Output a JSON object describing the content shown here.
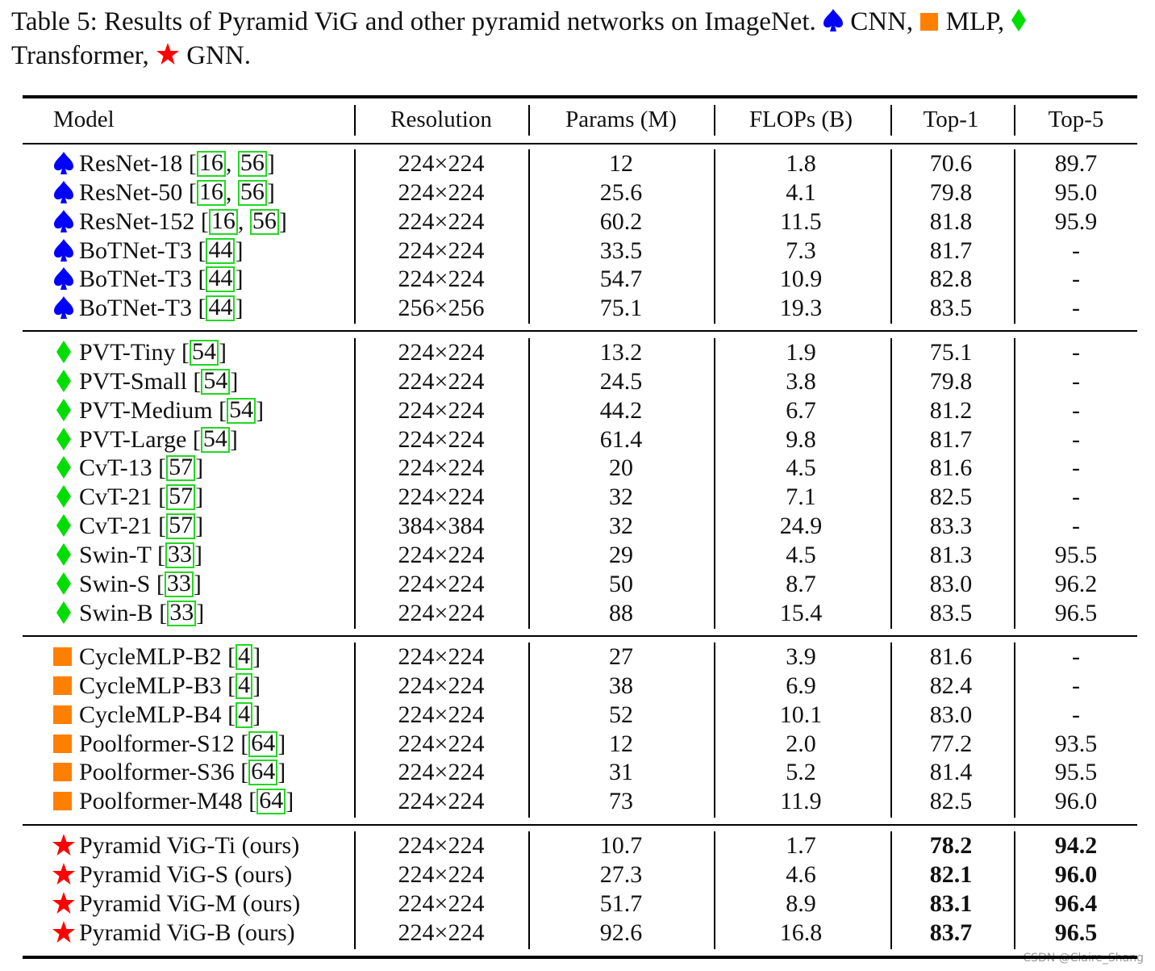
{
  "caption": {
    "part1": "Table 5: Results of Pyramid ViG and other pyramid networks on ImageNet.",
    "cnn": "CNN,",
    "mlp": "MLP,",
    "transformer": "Transformer,",
    "gnn": "GNN."
  },
  "colors": {
    "cnn": "#0000ff",
    "transformer": "#00dd00",
    "mlp": "#ff8000",
    "gnn": "#ff0000",
    "ref_box": "#22d822"
  },
  "icons": {
    "cnn": "spade-icon",
    "transformer": "diamond-icon",
    "mlp": "square-icon",
    "gnn": "star-icon"
  },
  "headers": [
    "Model",
    "Resolution",
    "Params (M)",
    "FLOPs (B)",
    "Top-1",
    "Top-5"
  ],
  "groups": [
    {
      "type": "cnn",
      "rows": [
        {
          "name": "ResNet-18",
          "refs": [
            "16",
            "56"
          ],
          "res": "224×224",
          "params": "12",
          "flops": "1.8",
          "top1": "70.6",
          "top5": "89.7"
        },
        {
          "name": "ResNet-50",
          "refs": [
            "16",
            "56"
          ],
          "res": "224×224",
          "params": "25.6",
          "flops": "4.1",
          "top1": "79.8",
          "top5": "95.0"
        },
        {
          "name": "ResNet-152",
          "refs": [
            "16",
            "56"
          ],
          "res": "224×224",
          "params": "60.2",
          "flops": "11.5",
          "top1": "81.8",
          "top5": "95.9"
        },
        {
          "name": "BoTNet-T3",
          "refs": [
            "44"
          ],
          "res": "224×224",
          "params": "33.5",
          "flops": "7.3",
          "top1": "81.7",
          "top5": "-"
        },
        {
          "name": "BoTNet-T3",
          "refs": [
            "44"
          ],
          "res": "224×224",
          "params": "54.7",
          "flops": "10.9",
          "top1": "82.8",
          "top5": "-"
        },
        {
          "name": "BoTNet-T3",
          "refs": [
            "44"
          ],
          "res": "256×256",
          "params": "75.1",
          "flops": "19.3",
          "top1": "83.5",
          "top5": "-"
        }
      ]
    },
    {
      "type": "transformer",
      "rows": [
        {
          "name": "PVT-Tiny",
          "refs": [
            "54"
          ],
          "res": "224×224",
          "params": "13.2",
          "flops": "1.9",
          "top1": "75.1",
          "top5": "-"
        },
        {
          "name": "PVT-Small",
          "refs": [
            "54"
          ],
          "res": "224×224",
          "params": "24.5",
          "flops": "3.8",
          "top1": "79.8",
          "top5": "-"
        },
        {
          "name": "PVT-Medium",
          "refs": [
            "54"
          ],
          "res": "224×224",
          "params": "44.2",
          "flops": "6.7",
          "top1": "81.2",
          "top5": "-"
        },
        {
          "name": "PVT-Large",
          "refs": [
            "54"
          ],
          "res": "224×224",
          "params": "61.4",
          "flops": "9.8",
          "top1": "81.7",
          "top5": "-"
        },
        {
          "name": "CvT-13",
          "refs": [
            "57"
          ],
          "res": "224×224",
          "params": "20",
          "flops": "4.5",
          "top1": "81.6",
          "top5": "-"
        },
        {
          "name": "CvT-21",
          "refs": [
            "57"
          ],
          "res": "224×224",
          "params": "32",
          "flops": "7.1",
          "top1": "82.5",
          "top5": "-"
        },
        {
          "name": "CvT-21",
          "refs": [
            "57"
          ],
          "res": "384×384",
          "params": "32",
          "flops": "24.9",
          "top1": "83.3",
          "top5": "-"
        },
        {
          "name": "Swin-T",
          "refs": [
            "33"
          ],
          "res": "224×224",
          "params": "29",
          "flops": "4.5",
          "top1": "81.3",
          "top5": "95.5"
        },
        {
          "name": "Swin-S",
          "refs": [
            "33"
          ],
          "res": "224×224",
          "params": "50",
          "flops": "8.7",
          "top1": "83.0",
          "top5": "96.2"
        },
        {
          "name": "Swin-B",
          "refs": [
            "33"
          ],
          "res": "224×224",
          "params": "88",
          "flops": "15.4",
          "top1": "83.5",
          "top5": "96.5"
        }
      ]
    },
    {
      "type": "mlp",
      "rows": [
        {
          "name": "CycleMLP-B2",
          "refs": [
            "4"
          ],
          "res": "224×224",
          "params": "27",
          "flops": "3.9",
          "top1": "81.6",
          "top5": "-"
        },
        {
          "name": "CycleMLP-B3",
          "refs": [
            "4"
          ],
          "res": "224×224",
          "params": "38",
          "flops": "6.9",
          "top1": "82.4",
          "top5": "-"
        },
        {
          "name": "CycleMLP-B4",
          "refs": [
            "4"
          ],
          "res": "224×224",
          "params": "52",
          "flops": "10.1",
          "top1": "83.0",
          "top5": "-"
        },
        {
          "name": "Poolformer-S12",
          "refs": [
            "64"
          ],
          "res": "224×224",
          "params": "12",
          "flops": "2.0",
          "top1": "77.2",
          "top5": "93.5"
        },
        {
          "name": "Poolformer-S36",
          "refs": [
            "64"
          ],
          "res": "224×224",
          "params": "31",
          "flops": "5.2",
          "top1": "81.4",
          "top5": "95.5"
        },
        {
          "name": "Poolformer-M48",
          "refs": [
            "64"
          ],
          "res": "224×224",
          "params": "73",
          "flops": "11.9",
          "top1": "82.5",
          "top5": "96.0"
        }
      ]
    },
    {
      "type": "gnn",
      "bold_top": true,
      "rows": [
        {
          "name": "Pyramid ViG-Ti (ours)",
          "refs": [],
          "res": "224×224",
          "params": "10.7",
          "flops": "1.7",
          "top1": "78.2",
          "top5": "94.2"
        },
        {
          "name": "Pyramid ViG-S (ours)",
          "refs": [],
          "res": "224×224",
          "params": "27.3",
          "flops": "4.6",
          "top1": "82.1",
          "top5": "96.0"
        },
        {
          "name": "Pyramid ViG-M (ours)",
          "refs": [],
          "res": "224×224",
          "params": "51.7",
          "flops": "8.9",
          "top1": "83.1",
          "top5": "96.4"
        },
        {
          "name": "Pyramid ViG-B (ours)",
          "refs": [],
          "res": "224×224",
          "params": "92.6",
          "flops": "16.8",
          "top1": "83.7",
          "top5": "96.5"
        }
      ]
    }
  ],
  "watermark": "CSDN @Claire_Shang"
}
